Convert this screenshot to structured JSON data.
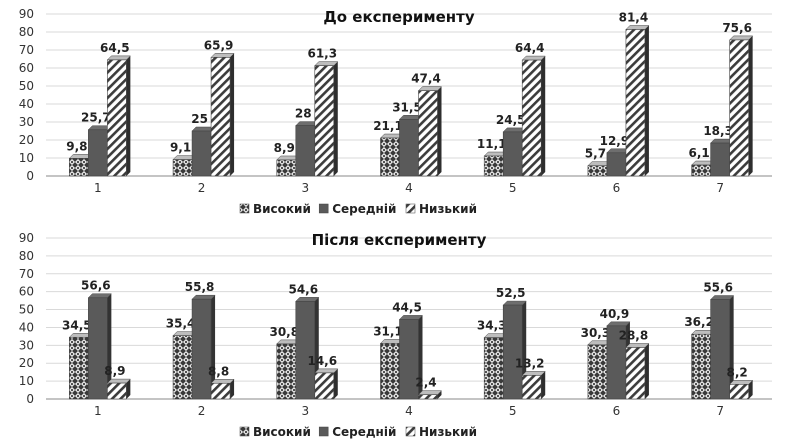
{
  "colors": {
    "high": "#4a4a4a",
    "medium": "#5a5a5a",
    "low": "#3c3c3c",
    "grid": "#d9d9d9",
    "axis": "#888888"
  },
  "chart_data": [
    {
      "type": "bar",
      "title": "До експерименту",
      "categories": [
        "1",
        "2",
        "3",
        "4",
        "5",
        "6",
        "7"
      ],
      "ylim": [
        0,
        90
      ],
      "yticks": [
        "0",
        "10",
        "20",
        "30",
        "40",
        "50",
        "60",
        "70",
        "80",
        "90"
      ],
      "grid": true,
      "legend_position": "bottom",
      "series": [
        {
          "name": "Високий",
          "pattern": "checker",
          "values": [
            9.8,
            9.1,
            8.9,
            21.1,
            11.1,
            5.7,
            6.1
          ],
          "labels": [
            "9,8",
            "9,1",
            "8,9",
            "21,1",
            "11,1",
            "5,7",
            "6,1"
          ]
        },
        {
          "name": "Середній",
          "pattern": "solid",
          "values": [
            25.7,
            25,
            28,
            31.5,
            24.5,
            12.9,
            18.3
          ],
          "labels": [
            "25,7",
            "25",
            "28",
            "31,5",
            "24,5",
            "12,9",
            "18,3"
          ]
        },
        {
          "name": "Низький",
          "pattern": "diagonal",
          "values": [
            64.5,
            65.9,
            61.3,
            47.4,
            64.4,
            81.4,
            75.6
          ],
          "labels": [
            "64,5",
            "65,9",
            "61,3",
            "47,4",
            "64,4",
            "81,4",
            "75,6"
          ]
        }
      ]
    },
    {
      "type": "bar",
      "title": "Після експерименту",
      "categories": [
        "1",
        "2",
        "3",
        "4",
        "5",
        "6",
        "7"
      ],
      "ylim": [
        0,
        90
      ],
      "yticks": [
        "0",
        "10",
        "20",
        "30",
        "40",
        "50",
        "60",
        "70",
        "80",
        "90"
      ],
      "grid": true,
      "legend_position": "bottom",
      "series": [
        {
          "name": "Високий",
          "pattern": "checker",
          "values": [
            34.5,
            35.4,
            30.8,
            31.1,
            34.3,
            30.3,
            36.2
          ],
          "labels": [
            "34,5",
            "35,4",
            "30,8",
            "31,1",
            "34,3",
            "30,3",
            "36,2"
          ]
        },
        {
          "name": "Середній",
          "pattern": "solid",
          "values": [
            56.6,
            55.8,
            54.6,
            44.5,
            52.5,
            40.9,
            55.6
          ],
          "labels": [
            "56,6",
            "55,8",
            "54,6",
            "44,5",
            "52,5",
            "40,9",
            "55,6"
          ]
        },
        {
          "name": "Низький",
          "pattern": "diagonal",
          "values": [
            8.9,
            8.8,
            14.6,
            2.4,
            13.2,
            28.8,
            8.2
          ],
          "labels": [
            "8,9",
            "8,8",
            "14,6",
            "2,4",
            "13,2",
            "28,8",
            "8,2"
          ]
        }
      ]
    }
  ]
}
